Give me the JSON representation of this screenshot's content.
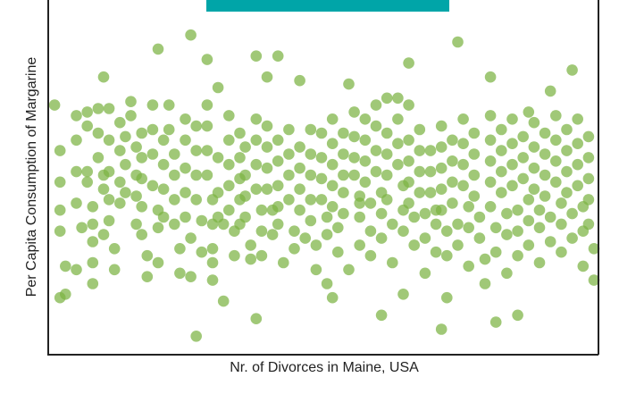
{
  "chart_data": {
    "type": "scatter",
    "xlabel": "Nr. of Divorces in Maine, USA",
    "ylabel": "Per Capita Consumption of Margarine",
    "xlim": [
      0,
      100
    ],
    "ylim": [
      0,
      100
    ],
    "grid": false,
    "point_color": "#7cb342",
    "banner_color": "#00a5a8",
    "points": [
      [
        1,
        70
      ],
      [
        2,
        57
      ],
      [
        2,
        48
      ],
      [
        2,
        40
      ],
      [
        2,
        34
      ],
      [
        3,
        24
      ],
      [
        3,
        16
      ],
      [
        5,
        67
      ],
      [
        5,
        60
      ],
      [
        5,
        51
      ],
      [
        5,
        42
      ],
      [
        5,
        23
      ],
      [
        6,
        35
      ],
      [
        7,
        68
      ],
      [
        7,
        64
      ],
      [
        7,
        51
      ],
      [
        7,
        48
      ],
      [
        8,
        41
      ],
      [
        8,
        36
      ],
      [
        8,
        31
      ],
      [
        8,
        25
      ],
      [
        8,
        19
      ],
      [
        9,
        69
      ],
      [
        9,
        62
      ],
      [
        9,
        55
      ],
      [
        10,
        50
      ],
      [
        10,
        46
      ],
      [
        10,
        33
      ],
      [
        11,
        69
      ],
      [
        11,
        60
      ],
      [
        11,
        51
      ],
      [
        11,
        43
      ],
      [
        11,
        37
      ],
      [
        12,
        29
      ],
      [
        12,
        23
      ],
      [
        13,
        65
      ],
      [
        13,
        57
      ],
      [
        13,
        48
      ],
      [
        13,
        42
      ],
      [
        14,
        61
      ],
      [
        14,
        53
      ],
      [
        14,
        45
      ],
      [
        15,
        71
      ],
      [
        15,
        67
      ],
      [
        16,
        58
      ],
      [
        16,
        50
      ],
      [
        16,
        44
      ],
      [
        16,
        36
      ],
      [
        17,
        62
      ],
      [
        17,
        55
      ],
      [
        17,
        49
      ],
      [
        17,
        41
      ],
      [
        17,
        33
      ],
      [
        18,
        27
      ],
      [
        18,
        21
      ],
      [
        19,
        70
      ],
      [
        19,
        63
      ],
      [
        19,
        56
      ],
      [
        19,
        47
      ],
      [
        20,
        40
      ],
      [
        20,
        35
      ],
      [
        20,
        25
      ],
      [
        21,
        60
      ],
      [
        21,
        53
      ],
      [
        21,
        46
      ],
      [
        21,
        38
      ],
      [
        22,
        70
      ],
      [
        22,
        63
      ],
      [
        23,
        56
      ],
      [
        23,
        50
      ],
      [
        23,
        43
      ],
      [
        23,
        36
      ],
      [
        24,
        29
      ],
      [
        24,
        22
      ],
      [
        25,
        66
      ],
      [
        25,
        60
      ],
      [
        25,
        52
      ],
      [
        25,
        45
      ],
      [
        25,
        38
      ],
      [
        26,
        32
      ],
      [
        26,
        21
      ],
      [
        27,
        64
      ],
      [
        27,
        57
      ],
      [
        27,
        50
      ],
      [
        27,
        43
      ],
      [
        28,
        37
      ],
      [
        28,
        28
      ],
      [
        29,
        83
      ],
      [
        29,
        70
      ],
      [
        29,
        64
      ],
      [
        29,
        57
      ],
      [
        29,
        50
      ],
      [
        30,
        43
      ],
      [
        30,
        36
      ],
      [
        30,
        29
      ],
      [
        30,
        25
      ],
      [
        31,
        75
      ],
      [
        31,
        55
      ],
      [
        31,
        45
      ],
      [
        31,
        38
      ],
      [
        32,
        36
      ],
      [
        32,
        14
      ],
      [
        33,
        67
      ],
      [
        33,
        60
      ],
      [
        33,
        53
      ],
      [
        33,
        47
      ],
      [
        33,
        40
      ],
      [
        34,
        34
      ],
      [
        34,
        27
      ],
      [
        35,
        62
      ],
      [
        35,
        55
      ],
      [
        35,
        49
      ],
      [
        35,
        43
      ],
      [
        35,
        36
      ],
      [
        36,
        58
      ],
      [
        36,
        50
      ],
      [
        36,
        44
      ],
      [
        36,
        38
      ],
      [
        37,
        30
      ],
      [
        37,
        26
      ],
      [
        38,
        66
      ],
      [
        38,
        60
      ],
      [
        38,
        53
      ],
      [
        38,
        46
      ],
      [
        39,
        40
      ],
      [
        39,
        34
      ],
      [
        39,
        27
      ],
      [
        40,
        78
      ],
      [
        40,
        64
      ],
      [
        40,
        58
      ],
      [
        40,
        52
      ],
      [
        40,
        46
      ],
      [
        41,
        40
      ],
      [
        41,
        33
      ],
      [
        42,
        60
      ],
      [
        42,
        54
      ],
      [
        42,
        47
      ],
      [
        42,
        41
      ],
      [
        42,
        36
      ],
      [
        43,
        25
      ],
      [
        44,
        63
      ],
      [
        44,
        56
      ],
      [
        44,
        50
      ],
      [
        44,
        43
      ],
      [
        45,
        34
      ],
      [
        45,
        29
      ],
      [
        46,
        58
      ],
      [
        46,
        52
      ],
      [
        46,
        46
      ],
      [
        46,
        40
      ],
      [
        47,
        32
      ],
      [
        48,
        63
      ],
      [
        48,
        56
      ],
      [
        48,
        50
      ],
      [
        48,
        43
      ],
      [
        48,
        37
      ],
      [
        49,
        30
      ],
      [
        49,
        23
      ],
      [
        50,
        62
      ],
      [
        50,
        55
      ],
      [
        50,
        49
      ],
      [
        50,
        43
      ],
      [
        51,
        38
      ],
      [
        51,
        33
      ],
      [
        51,
        19
      ],
      [
        52,
        66
      ],
      [
        52,
        59
      ],
      [
        52,
        53
      ],
      [
        52,
        47
      ],
      [
        52,
        41
      ],
      [
        53,
        35
      ],
      [
        53,
        28
      ],
      [
        54,
        62
      ],
      [
        54,
        56
      ],
      [
        54,
        50
      ],
      [
        54,
        45
      ],
      [
        54,
        39
      ],
      [
        55,
        23
      ],
      [
        56,
        68
      ],
      [
        56,
        61
      ],
      [
        56,
        55
      ],
      [
        56,
        50
      ],
      [
        57,
        44
      ],
      [
        57,
        38
      ],
      [
        57,
        30
      ],
      [
        58,
        66
      ],
      [
        58,
        60
      ],
      [
        58,
        54
      ],
      [
        58,
        48
      ],
      [
        59,
        42
      ],
      [
        59,
        34
      ],
      [
        59,
        27
      ],
      [
        60,
        70
      ],
      [
        60,
        64
      ],
      [
        60,
        57
      ],
      [
        60,
        51
      ],
      [
        61,
        45
      ],
      [
        61,
        39
      ],
      [
        61,
        32
      ],
      [
        62,
        72
      ],
      [
        62,
        62
      ],
      [
        62,
        56
      ],
      [
        62,
        50
      ],
      [
        62,
        43
      ],
      [
        63,
        36
      ],
      [
        63,
        25
      ],
      [
        64,
        66
      ],
      [
        64,
        59
      ],
      [
        64,
        53
      ],
      [
        65,
        47
      ],
      [
        65,
        40
      ],
      [
        65,
        34
      ],
      [
        65,
        16
      ],
      [
        66,
        70
      ],
      [
        66,
        60
      ],
      [
        66,
        54
      ],
      [
        66,
        48
      ],
      [
        66,
        42
      ],
      [
        67,
        38
      ],
      [
        67,
        30
      ],
      [
        68,
        63
      ],
      [
        68,
        57
      ],
      [
        68,
        51
      ],
      [
        68,
        45
      ],
      [
        69,
        39
      ],
      [
        69,
        32
      ],
      [
        69,
        22
      ],
      [
        70,
        57
      ],
      [
        70,
        51
      ],
      [
        70,
        45
      ],
      [
        71,
        40
      ],
      [
        71,
        36
      ],
      [
        71,
        28
      ],
      [
        72,
        64
      ],
      [
        72,
        58
      ],
      [
        72,
        52
      ],
      [
        72,
        46
      ],
      [
        72,
        40
      ],
      [
        73,
        34
      ],
      [
        73,
        27
      ],
      [
        74,
        60
      ],
      [
        74,
        54
      ],
      [
        74,
        48
      ],
      [
        74,
        42
      ],
      [
        75,
        36
      ],
      [
        75,
        30
      ],
      [
        76,
        66
      ],
      [
        76,
        59
      ],
      [
        76,
        53
      ],
      [
        76,
        47
      ],
      [
        77,
        41
      ],
      [
        77,
        35
      ],
      [
        77,
        24
      ],
      [
        78,
        62
      ],
      [
        78,
        56
      ],
      [
        78,
        50
      ],
      [
        78,
        44
      ],
      [
        79,
        38
      ],
      [
        79,
        32
      ],
      [
        80,
        26
      ],
      [
        80,
        19
      ],
      [
        81,
        67
      ],
      [
        81,
        60
      ],
      [
        81,
        54
      ],
      [
        81,
        48
      ],
      [
        81,
        41
      ],
      [
        82,
        35
      ],
      [
        82,
        28
      ],
      [
        83,
        63
      ],
      [
        83,
        57
      ],
      [
        83,
        51
      ],
      [
        83,
        45
      ],
      [
        84,
        39
      ],
      [
        84,
        33
      ],
      [
        84,
        22
      ],
      [
        85,
        66
      ],
      [
        85,
        59
      ],
      [
        85,
        53
      ],
      [
        85,
        47
      ],
      [
        86,
        40
      ],
      [
        86,
        34
      ],
      [
        86,
        27
      ],
      [
        87,
        61
      ],
      [
        87,
        55
      ],
      [
        87,
        49
      ],
      [
        88,
        43
      ],
      [
        88,
        37
      ],
      [
        88,
        30
      ],
      [
        89,
        65
      ],
      [
        89,
        58
      ],
      [
        89,
        52
      ],
      [
        89,
        46
      ],
      [
        90,
        40
      ],
      [
        90,
        35
      ],
      [
        90,
        25
      ],
      [
        91,
        62
      ],
      [
        91,
        56
      ],
      [
        91,
        50
      ],
      [
        91,
        44
      ],
      [
        92,
        38
      ],
      [
        92,
        31
      ],
      [
        93,
        67
      ],
      [
        93,
        60
      ],
      [
        93,
        54
      ],
      [
        93,
        48
      ],
      [
        94,
        42
      ],
      [
        94,
        36
      ],
      [
        94,
        28
      ],
      [
        95,
        63
      ],
      [
        95,
        57
      ],
      [
        95,
        51
      ],
      [
        95,
        45
      ],
      [
        96,
        39
      ],
      [
        96,
        32
      ],
      [
        97,
        66
      ],
      [
        97,
        59
      ],
      [
        97,
        53
      ],
      [
        97,
        47
      ],
      [
        98,
        41
      ],
      [
        98,
        34
      ],
      [
        98,
        24
      ],
      [
        99,
        61
      ],
      [
        99,
        55
      ],
      [
        99,
        49
      ],
      [
        99,
        43
      ],
      [
        99,
        36
      ],
      [
        100,
        29
      ],
      [
        100,
        20
      ],
      [
        2,
        15
      ],
      [
        10,
        78
      ],
      [
        20,
        86
      ],
      [
        26,
        90
      ],
      [
        38,
        84
      ],
      [
        46,
        77
      ],
      [
        55,
        76
      ],
      [
        66,
        82
      ],
      [
        72,
        6
      ],
      [
        75,
        88
      ],
      [
        81,
        78
      ],
      [
        88,
        68
      ],
      [
        92,
        74
      ],
      [
        96,
        80
      ],
      [
        42,
        84
      ],
      [
        38,
        9
      ],
      [
        27,
        4
      ],
      [
        61,
        10
      ],
      [
        82,
        8
      ],
      [
        57,
        42
      ],
      [
        30,
        20
      ],
      [
        73,
        15
      ],
      [
        86,
        10
      ],
      [
        64,
        72
      ],
      [
        52,
        15
      ]
    ]
  }
}
